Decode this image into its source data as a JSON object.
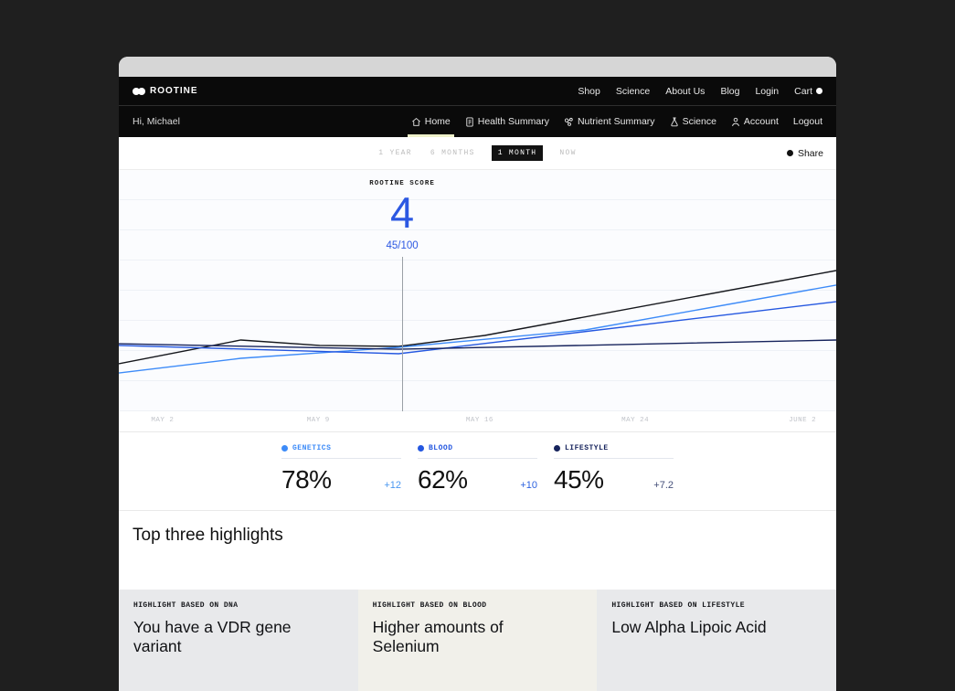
{
  "nav_primary": {
    "logo": "ROOTINE",
    "links": [
      "Shop",
      "Science",
      "About Us",
      "Blog",
      "Login",
      "Cart"
    ]
  },
  "nav_secondary": {
    "greeting": "Hi, Michael",
    "items": [
      {
        "icon": "home-icon",
        "label": "Home",
        "active": true
      },
      {
        "icon": "document-icon",
        "label": "Health Summary",
        "active": false
      },
      {
        "icon": "molecule-icon",
        "label": "Nutrient Summary",
        "active": false
      },
      {
        "icon": "flask-icon",
        "label": "Science",
        "active": false
      },
      {
        "icon": "person-icon",
        "label": "Account",
        "active": false
      },
      {
        "icon": "none",
        "label": "Logout",
        "active": false
      }
    ]
  },
  "toolbar": {
    "ranges": [
      "1 YEAR",
      "6 MONTHS",
      "1 MONTH",
      "NOW"
    ],
    "active_range": "1 MONTH",
    "share_label": "Share"
  },
  "score": {
    "label": "ROOTINE SCORE",
    "value": "4",
    "fraction": "45/100",
    "color": "#2c58e2"
  },
  "chart_data": {
    "type": "line",
    "title": "",
    "xlabel": "",
    "ylabel": "",
    "ylim": [
      0,
      100
    ],
    "grid": true,
    "legend_position": "below-as-metric-cards",
    "x_labels": [
      {
        "label": "MAY 2",
        "f": 0.061
      },
      {
        "label": "MAY 9",
        "f": 0.278
      },
      {
        "label": "MAY 16",
        "f": 0.503
      },
      {
        "label": "MAY 24",
        "f": 0.72
      },
      {
        "label": "JUNE 2",
        "f": 0.953
      }
    ],
    "today_marker": {
      "x_f": 0.395,
      "score_value": "4",
      "score_fraction": "45/100"
    },
    "series": [
      {
        "name": "rootine-score",
        "color": "#15171c",
        "points": [
          [
            0,
            20.4
          ],
          [
            0.17,
            30.4
          ],
          [
            0.28,
            28.1
          ],
          [
            0.39,
            27.7
          ],
          [
            0.51,
            32.3
          ],
          [
            1,
            59.6
          ]
        ]
      },
      {
        "name": "genetics",
        "color": "#3d8bf8",
        "points": [
          [
            0,
            16.5
          ],
          [
            0.17,
            22.7
          ],
          [
            0.39,
            27.3
          ],
          [
            0.65,
            34.6
          ],
          [
            1,
            53.5
          ]
        ]
      },
      {
        "name": "blood",
        "color": "#2457e0",
        "points": [
          [
            0,
            28.1
          ],
          [
            0.39,
            24.6
          ],
          [
            1,
            46.5
          ]
        ]
      },
      {
        "name": "lifestyle",
        "color": "#16235c",
        "points": [
          [
            0,
            28.8
          ],
          [
            0.39,
            26.5
          ],
          [
            1,
            30.4
          ]
        ]
      }
    ]
  },
  "metrics": [
    {
      "label": "GENETICS",
      "value": "78%",
      "delta": "+12",
      "color": "#3d8bf8",
      "delta_color": "#4a97f0"
    },
    {
      "label": "BLOOD",
      "value": "62%",
      "delta": "+10",
      "color": "#2457e0",
      "delta_color": "#2d62e0"
    },
    {
      "label": "LIFESTYLE",
      "value": "45%",
      "delta": "+7.2",
      "color": "#16235c",
      "delta_color": "#45507a"
    }
  ],
  "highlights": {
    "title": "Top three highlights",
    "cards": [
      {
        "tag": "HIGHLIGHT BASED ON DNA",
        "title": "You have a VDR gene variant",
        "bg": "#e8e9eb"
      },
      {
        "tag": "HIGHLIGHT BASED ON BLOOD",
        "title": "Higher amounts of Selenium",
        "bg": "#f1f0ea"
      },
      {
        "tag": "HIGHLIGHT BASED ON LIFESTYLE",
        "title": "Low Alpha Lipoic Acid",
        "bg": "#e8e9eb"
      }
    ]
  }
}
